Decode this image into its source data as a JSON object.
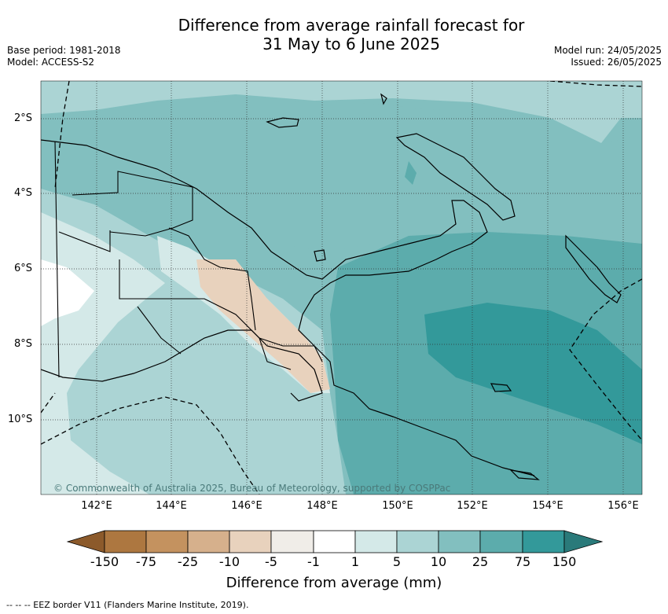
{
  "title_line1": "Difference from average rainfall forecast for",
  "title_line2": "31 May to 6 June 2025",
  "base_period": "Base period: 1981-2018",
  "model": "Model: ACCESS-S2",
  "model_run": "Model run: 24/05/2025",
  "issued": "Issued: 26/05/2025",
  "lat_labels": [
    "2°S",
    "4°S",
    "6°S",
    "8°S",
    "10°S"
  ],
  "lon_labels": [
    "142°E",
    "144°E",
    "146°E",
    "148°E",
    "150°E",
    "152°E",
    "154°E",
    "156°E"
  ],
  "copyright": "© Commonwealth of Australia 2025, Bureau of Meteorology, supported by COSPPac",
  "colorbar": {
    "ticks": [
      "-150",
      "-75",
      "-25",
      "-10",
      "-5",
      "-1",
      "1",
      "5",
      "10",
      "25",
      "75",
      "150"
    ],
    "colors": [
      "#8c5a2b",
      "#ad7740",
      "#c4925f",
      "#d6b08c",
      "#e8d2bd",
      "#f0ede8",
      "#ffffff",
      "#d4e9e8",
      "#abd4d4",
      "#82bfbf",
      "#5cacac",
      "#33999a",
      "#2a7a7a"
    ],
    "label": "Difference from average (mm)"
  },
  "footnote": "--  --  -- EEZ border V11 (Flanders Marine Institute, 2019)."
}
